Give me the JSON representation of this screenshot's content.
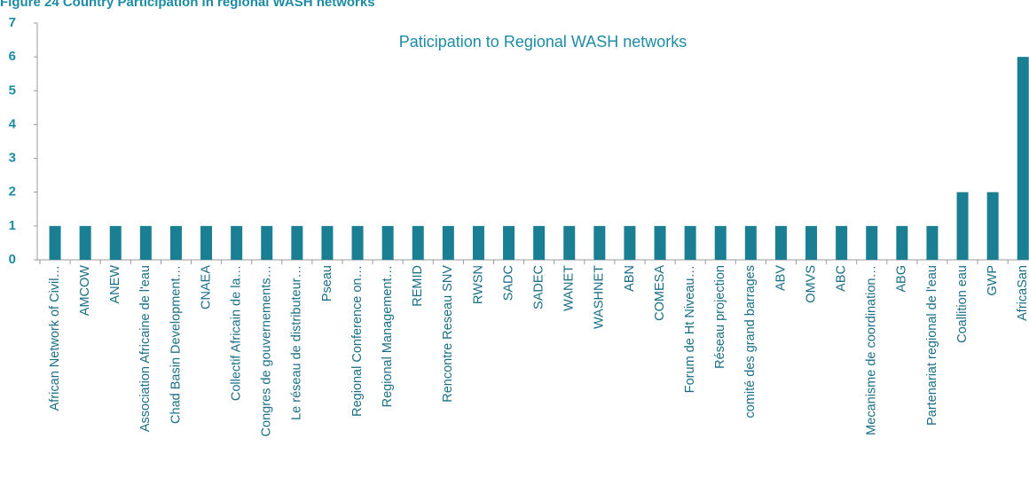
{
  "chart_data": {
    "type": "bar",
    "title": "Figure 24 Country Participation in regional WASH networks",
    "subtitle": "Paticipation to Regional WASH networks",
    "categories": [
      "African Network of Civil…",
      "AMCOW",
      "ANEW",
      "Association Africaine de l'eau",
      "Chad Basin Development…",
      "CNAEA",
      "Collectif Africain de la…",
      "Congres de gouvernements…",
      "Le réseau de distributeur…",
      "Pseau",
      "Regional Conference on…",
      "Regional Management…",
      "REMID",
      "Rencontre Reseau SNV",
      "RWSN",
      "SADC",
      "SADEC",
      "WANET",
      "WASHNET",
      "ABN",
      "COMESA",
      "Forum de Ht Niveau…",
      "Réseau projection",
      "comité des grand barrages",
      "ABV",
      "OMVS",
      "ABC",
      "Mecanisme de coordination…",
      "ABG",
      "Partenariat regional de l'eau",
      "Coallition eau",
      "GWP",
      "AfricaSan"
    ],
    "values": [
      1,
      1,
      1,
      1,
      1,
      1,
      1,
      1,
      1,
      1,
      1,
      1,
      1,
      1,
      1,
      1,
      1,
      1,
      1,
      1,
      1,
      1,
      1,
      1,
      1,
      1,
      1,
      1,
      1,
      1,
      2,
      2,
      6
    ],
    "color": "#1a7f93",
    "ylim": [
      0,
      7
    ],
    "yticks": [
      0,
      1,
      2,
      3,
      4,
      5,
      6,
      7
    ],
    "grid": false
  }
}
